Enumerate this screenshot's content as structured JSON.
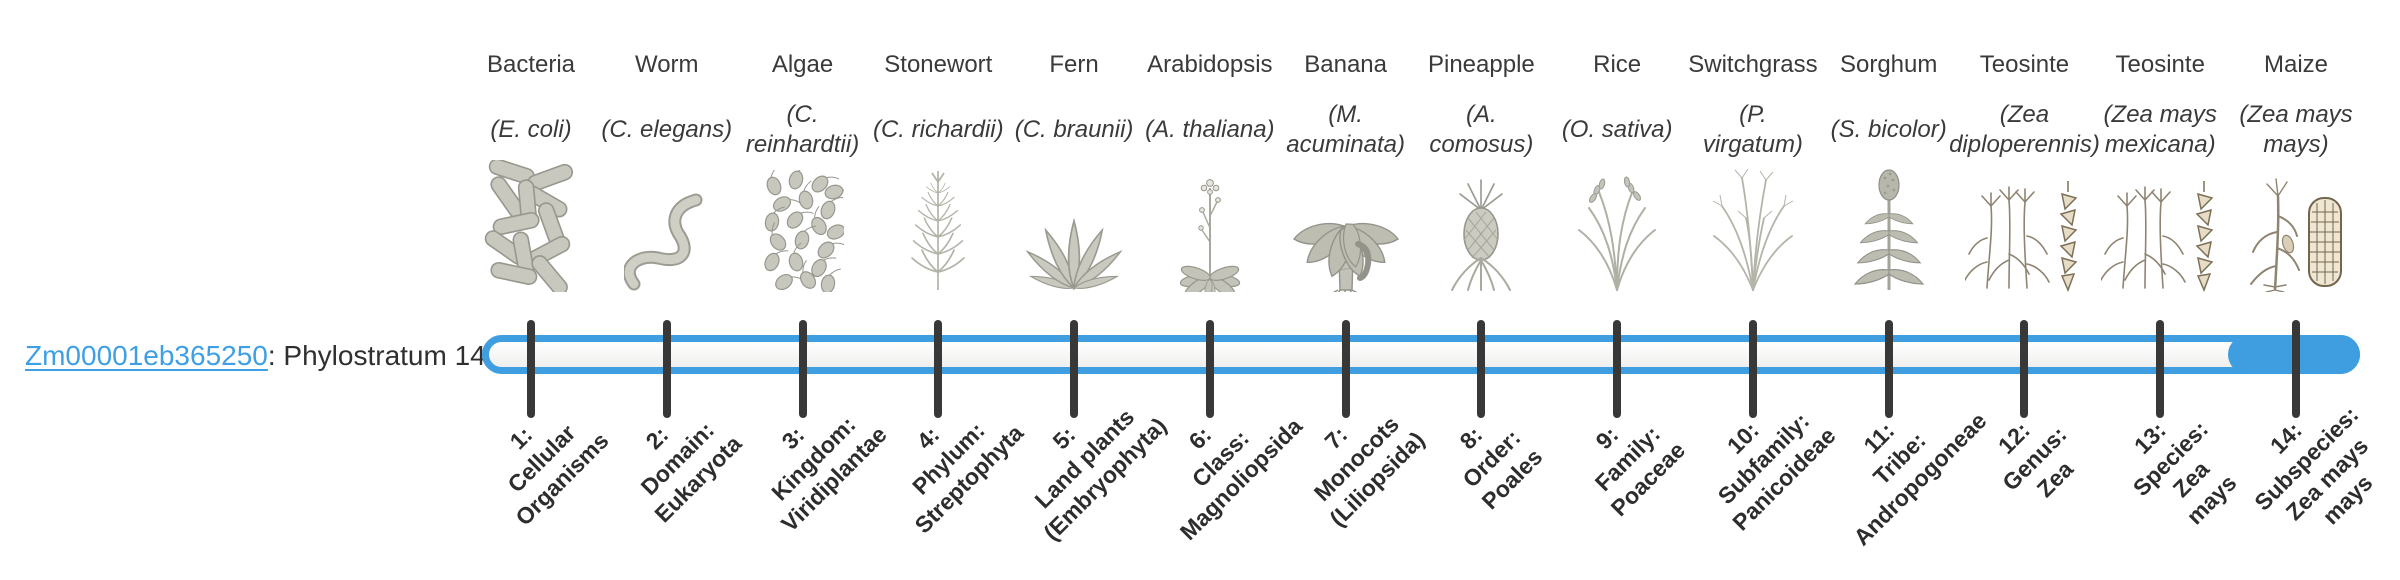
{
  "colors": {
    "accent_blue": "#3e9edf",
    "link_blue": "#3f9fe4",
    "tick_dark": "#383838",
    "text_dark": "#3a3a3a",
    "label_dark": "#2d2d2d",
    "track_top": "#ffffff",
    "track_bottom": "#efefee"
  },
  "gene": {
    "id": "Zm00001eb365250",
    "label_suffix": ": Phylostratum 14",
    "phylostratum": 14
  },
  "bar": {
    "total_strata": 14,
    "filled_stratum": 14
  },
  "organisms": [
    {
      "common": "Bacteria",
      "scientific": "(E. coli)",
      "icon": "bacteria-icon"
    },
    {
      "common": "Worm",
      "scientific": "(C. elegans)",
      "icon": "worm-icon"
    },
    {
      "common": "Algae",
      "scientific": "(C.\nreinhardtii)",
      "icon": "algae-icon"
    },
    {
      "common": "Stonewort",
      "scientific": "(C. richardii)",
      "icon": "stonewort-icon"
    },
    {
      "common": "Fern",
      "scientific": "(C. braunii)",
      "icon": "fern-icon"
    },
    {
      "common": "Arabidopsis",
      "scientific": "(A. thaliana)",
      "icon": "arabidopsis-icon"
    },
    {
      "common": "Banana",
      "scientific": "(M.\nacuminata)",
      "icon": "banana-icon"
    },
    {
      "common": "Pineapple",
      "scientific": "(A.\ncomosus)",
      "icon": "pineapple-icon"
    },
    {
      "common": "Rice",
      "scientific": "(O. sativa)",
      "icon": "rice-icon"
    },
    {
      "common": "Switchgrass",
      "scientific": "(P.\nvirgatum)",
      "icon": "switchgrass-icon"
    },
    {
      "common": "Sorghum",
      "scientific": "(S. bicolor)",
      "icon": "sorghum-icon"
    },
    {
      "common": "Teosinte",
      "scientific": "(Zea\ndiploperennis)",
      "icon": "teosinte-icon"
    },
    {
      "common": "Teosinte",
      "scientific": "(Zea mays\nmexicana)",
      "icon": "teosinte-icon"
    },
    {
      "common": "Maize",
      "scientific": "(Zea mays\nmays)",
      "icon": "maize-icon"
    }
  ],
  "strata": [
    {
      "num": 1,
      "label": "1:\nCellular\nOrganisms"
    },
    {
      "num": 2,
      "label": "2:\nDomain:\nEukaryota"
    },
    {
      "num": 3,
      "label": "3:\nKingdom:\nViridiplantae"
    },
    {
      "num": 4,
      "label": "4:\nPhylum:\nStreptophyta"
    },
    {
      "num": 5,
      "label": "5:\nLand plants\n(Embryophyta)"
    },
    {
      "num": 6,
      "label": "6:\nClass:\nMagnoliopsida"
    },
    {
      "num": 7,
      "label": "7:\nMonocots\n(Liliopsida)"
    },
    {
      "num": 8,
      "label": "8:\nOrder:\nPoales"
    },
    {
      "num": 9,
      "label": "9:\nFamily:\nPoaceae"
    },
    {
      "num": 10,
      "label": "10:\nSubfamily:\nPanicoideae"
    },
    {
      "num": 11,
      "label": "11:\nTribe:\nAndropogoneae"
    },
    {
      "num": 12,
      "label": "12:\nGenus:\nZea"
    },
    {
      "num": 13,
      "label": "13:\nSpecies:\nZea\nmays"
    },
    {
      "num": 14,
      "label": "14:\nSubspecies:\nZea mays\nmays"
    }
  ]
}
